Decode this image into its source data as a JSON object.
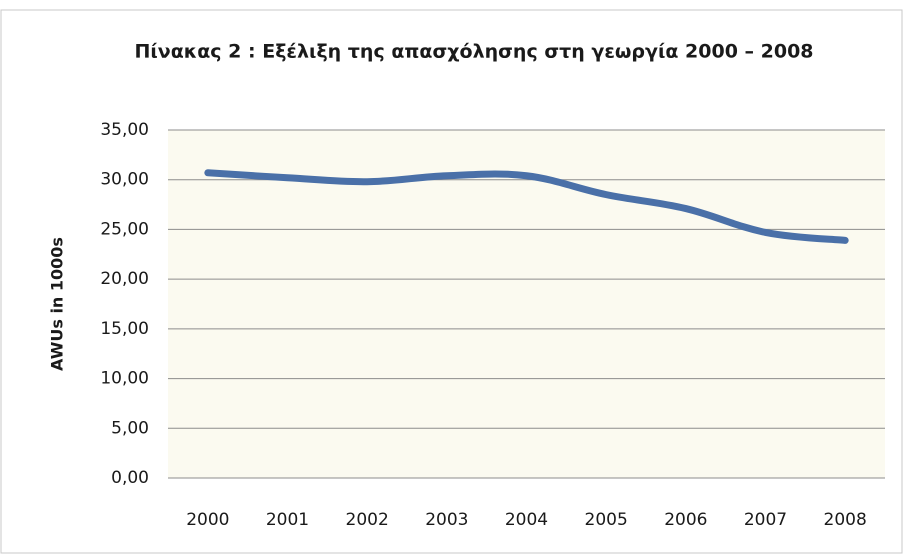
{
  "chart_data": {
    "type": "line",
    "title": "Πίνακας 2 : Εξέλιξη της απασχόλησης στη γεωργία 2000 – 2008",
    "y_label": "AWUs in 1000s",
    "categories": [
      "2000",
      "2001",
      "2002",
      "2003",
      "2004",
      "2005",
      "2006",
      "2007",
      "2008"
    ],
    "series": [
      {
        "name": "AWUs",
        "color": "#4a70a8",
        "values": [
          30.7,
          30.2,
          29.8,
          30.4,
          30.4,
          28.5,
          27.1,
          24.7,
          23.9
        ]
      }
    ],
    "ylim": [
      0,
      35
    ],
    "yticks": [
      {
        "value": 0,
        "label": "0,00"
      },
      {
        "value": 5,
        "label": "5,00"
      },
      {
        "value": 10,
        "label": "10,00"
      },
      {
        "value": 15,
        "label": "15,00"
      },
      {
        "value": 20,
        "label": "20,00"
      },
      {
        "value": 25,
        "label": "25,00"
      },
      {
        "value": 30,
        "label": "30,00"
      },
      {
        "value": 35,
        "label": "35,00"
      }
    ],
    "grid": true
  }
}
